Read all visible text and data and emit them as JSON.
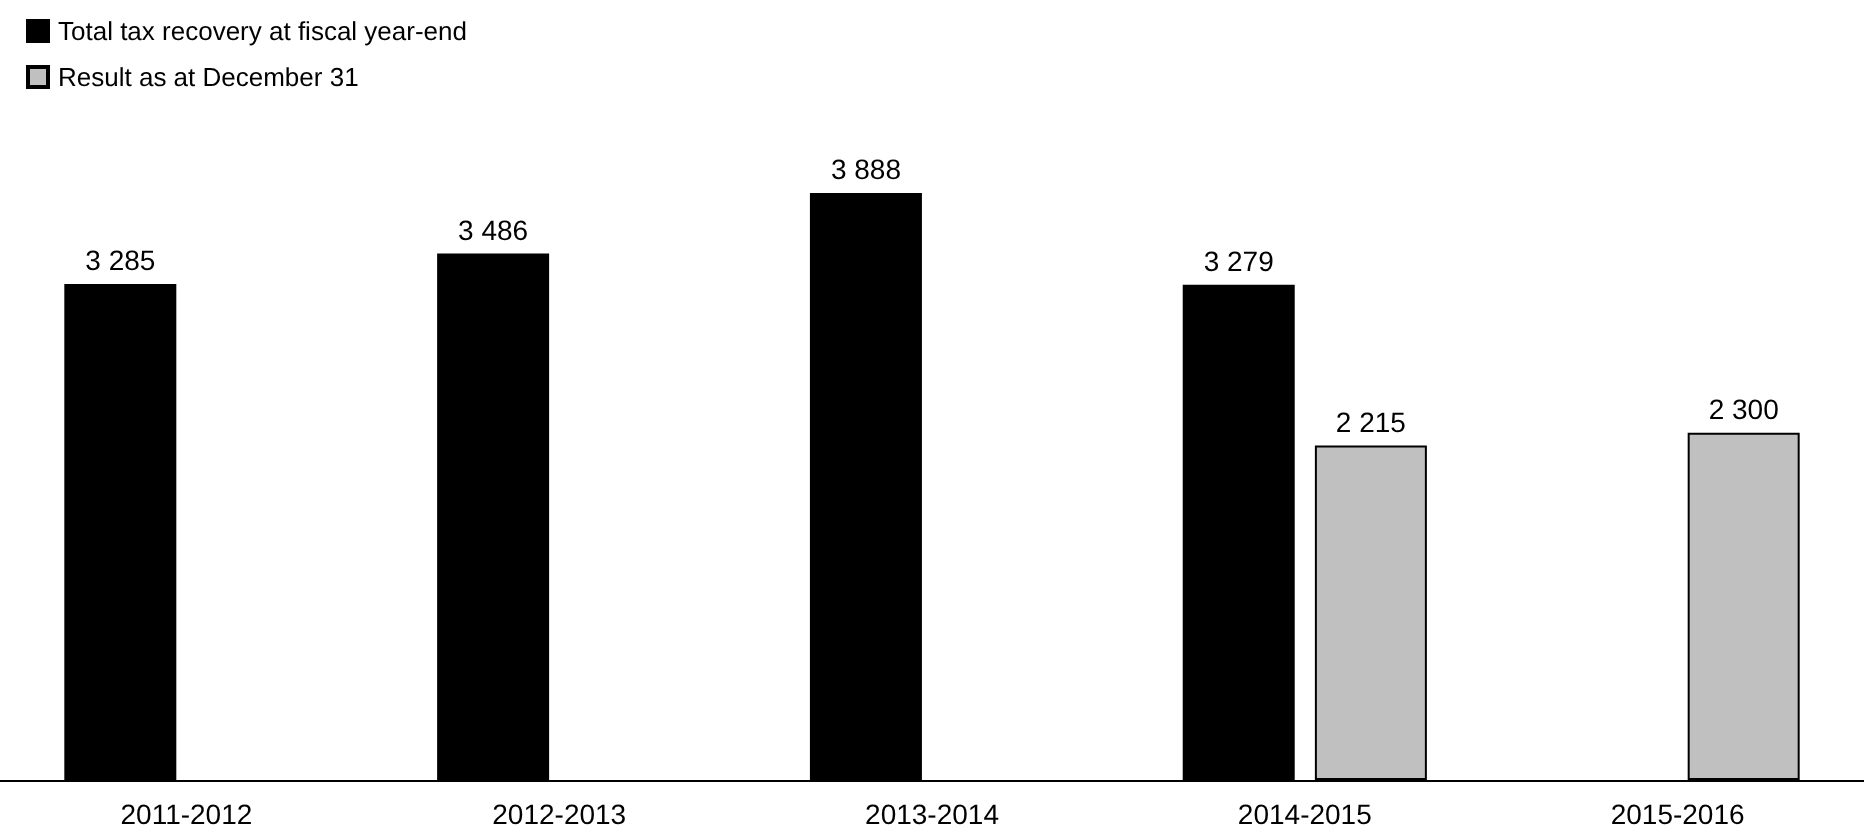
{
  "chart_data": {
    "type": "bar",
    "categories": [
      "2011-2012",
      "2012-2013",
      "2013-2014",
      "2014-2015",
      "2015-2016"
    ],
    "series": [
      {
        "name": "Total tax recovery at fiscal year-end",
        "color": "#000000",
        "values": [
          3285,
          3486,
          3888,
          3279,
          null
        ]
      },
      {
        "name": "Result as at December 31",
        "color": "#c0c0c0",
        "values": [
          null,
          null,
          null,
          2215,
          2300
        ]
      }
    ],
    "data_labels": true,
    "legend": "top left"
  }
}
